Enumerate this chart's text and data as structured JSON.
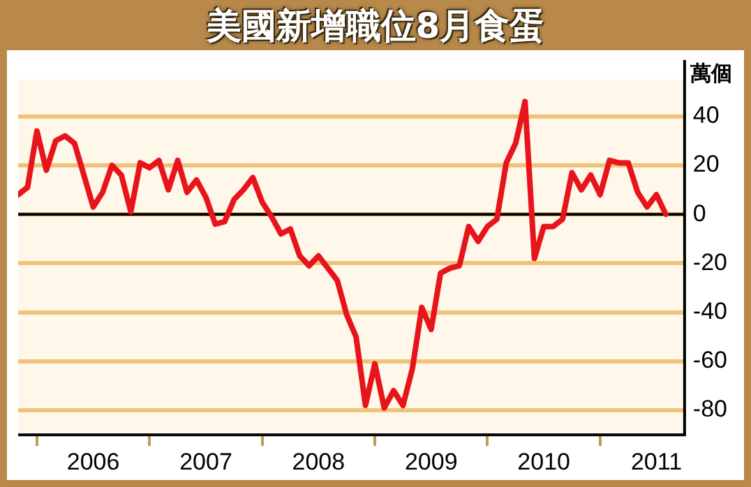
{
  "chart_data": {
    "type": "line",
    "title": "美國新增職位8月食蛋",
    "ylabel": "萬個",
    "x": [
      "2005-11",
      "2005-12",
      "2006-01",
      "2006-02",
      "2006-03",
      "2006-04",
      "2006-05",
      "2006-06",
      "2006-07",
      "2006-08",
      "2006-09",
      "2006-10",
      "2006-11",
      "2006-12",
      "2007-01",
      "2007-02",
      "2007-03",
      "2007-04",
      "2007-05",
      "2007-06",
      "2007-07",
      "2007-08",
      "2007-09",
      "2007-10",
      "2007-11",
      "2007-12",
      "2008-01",
      "2008-02",
      "2008-03",
      "2008-04",
      "2008-05",
      "2008-06",
      "2008-07",
      "2008-08",
      "2008-09",
      "2008-10",
      "2008-11",
      "2008-12",
      "2009-01",
      "2009-02",
      "2009-03",
      "2009-04",
      "2009-05",
      "2009-06",
      "2009-07",
      "2009-08",
      "2009-09",
      "2009-10",
      "2009-11",
      "2009-12",
      "2010-01",
      "2010-02",
      "2010-03",
      "2010-04",
      "2010-05",
      "2010-06",
      "2010-07",
      "2010-08",
      "2010-09",
      "2010-10",
      "2010-11",
      "2010-12",
      "2011-01",
      "2011-02",
      "2011-03",
      "2011-04",
      "2011-05",
      "2011-06",
      "2011-07",
      "2011-08"
    ],
    "series": [
      {
        "color": "#e8141b",
        "values": [
          8,
          11,
          34,
          18,
          30,
          32,
          29,
          16,
          3,
          9,
          20,
          16,
          1,
          21,
          19,
          22,
          10,
          22,
          9,
          14,
          7,
          -4,
          -3,
          6,
          10,
          15,
          5,
          -1,
          -8,
          -6,
          -17,
          -21,
          -17,
          -22,
          -27,
          -41,
          -50,
          -78,
          -61,
          -79,
          -72,
          -78,
          -63,
          -38,
          -47,
          -24,
          -22,
          -21,
          -5,
          -11,
          -5,
          -2,
          21,
          29,
          46,
          -18,
          -5,
          -5,
          -2,
          17,
          10,
          16,
          8,
          22,
          21,
          21,
          9,
          3,
          8,
          0
        ]
      }
    ],
    "xlim": [
      "2005-11",
      "2011-10"
    ],
    "xticks": [
      {
        "value": "2006-01",
        "label": null
      },
      {
        "value": "2006-07",
        "label": "2006"
      },
      {
        "value": "2007-01",
        "label": null
      },
      {
        "value": "2007-07",
        "label": "2007"
      },
      {
        "value": "2008-01",
        "label": null
      },
      {
        "value": "2008-07",
        "label": "2008"
      },
      {
        "value": "2009-01",
        "label": null
      },
      {
        "value": "2009-07",
        "label": "2009"
      },
      {
        "value": "2010-01",
        "label": null
      },
      {
        "value": "2010-07",
        "label": "2010"
      },
      {
        "value": "2011-01",
        "label": null
      },
      {
        "value": "2011-07",
        "label": "2011"
      }
    ],
    "ylim": [
      -90,
      55
    ],
    "yticks": [
      -80,
      -60,
      -40,
      -20,
      0,
      20,
      40
    ],
    "grid": "y",
    "marker": "none",
    "line_style": "solid",
    "ref_lines": [
      {
        "axis": "y",
        "value": 0,
        "color": "#000000"
      }
    ]
  }
}
